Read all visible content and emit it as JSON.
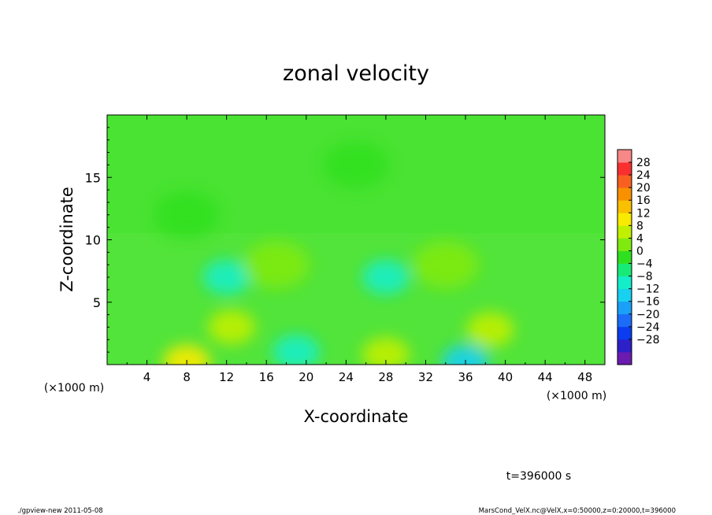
{
  "chart_data": {
    "type": "heatmap",
    "title": "zonal velocity",
    "xlabel": "X-coordinate",
    "ylabel": "Z-coordinate",
    "x_unit_label": "(×1000 m)",
    "y_unit_label": "(×1000 m)",
    "xlim": [
      0,
      50
    ],
    "ylim": [
      0,
      20
    ],
    "x_ticks": [
      4,
      8,
      12,
      16,
      20,
      24,
      28,
      32,
      36,
      40,
      44,
      48
    ],
    "y_ticks": [
      5,
      10,
      15
    ],
    "colorbar": {
      "levels": [
        -32,
        -28,
        -24,
        -20,
        -16,
        -12,
        -8,
        -4,
        0,
        4,
        8,
        12,
        16,
        20,
        24,
        28,
        32
      ],
      "tick_labels": [
        "28",
        "24",
        "20",
        "16",
        "12",
        "8",
        "4",
        "0",
        "−4",
        "−8",
        "−12",
        "−16",
        "−20",
        "−24",
        "−28"
      ],
      "colors": [
        "#6a1bb0",
        "#2d20c8",
        "#0a3cf0",
        "#1c6cf8",
        "#1aa0f8",
        "#18d0f0",
        "#14eec8",
        "#18ea78",
        "#30e020",
        "#80ea10",
        "#c0f000",
        "#f8ea00",
        "#f8c000",
        "#f89000",
        "#f86020",
        "#f83030",
        "#f88888"
      ]
    },
    "annotations": {
      "time_label": "t=396000 s",
      "footer_left": "./gpview-new  2011-05-08",
      "footer_right": "MarsCond_VelX.nc@VelX,x=0:50000,z=0:20000,t=396000"
    },
    "features": [
      {
        "x": 12,
        "y": 7,
        "value": -8
      },
      {
        "x": 28,
        "y": 7,
        "value": -8
      },
      {
        "x": 19,
        "y": 1,
        "value": -8
      },
      {
        "x": 36,
        "y": 0.2,
        "value": -12
      },
      {
        "x": 8,
        "y": 0.2,
        "value": 12
      },
      {
        "x": 28,
        "y": 0.8,
        "value": 8
      },
      {
        "x": 12.5,
        "y": 3,
        "value": 8
      },
      {
        "x": 38.5,
        "y": 2.8,
        "value": 8
      },
      {
        "x": 34,
        "y": 8,
        "value": 4
      },
      {
        "x": 17,
        "y": 8,
        "value": 4
      },
      {
        "x": 25,
        "y": 16,
        "value": 2
      },
      {
        "x": 8,
        "y": 12,
        "value": 2
      }
    ]
  }
}
